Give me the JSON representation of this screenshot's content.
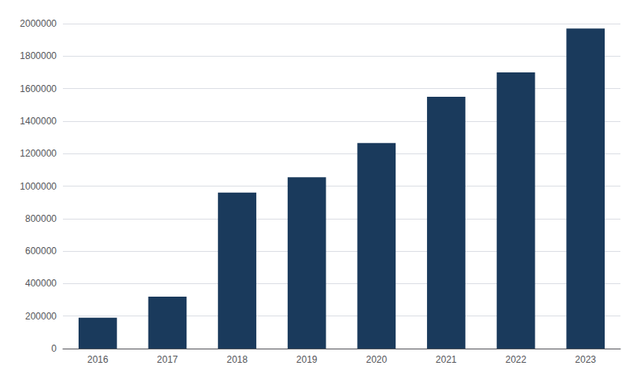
{
  "chart_data": {
    "type": "bar",
    "categories": [
      "2016",
      "2017",
      "2018",
      "2019",
      "2020",
      "2021",
      "2022",
      "2023"
    ],
    "values": [
      190000,
      320000,
      960000,
      1055000,
      1265000,
      1550000,
      1700000,
      1970000
    ],
    "color": "#1a3a5c",
    "ylim": [
      0,
      2000000
    ],
    "yticks": [
      0,
      200000,
      400000,
      600000,
      800000,
      1000000,
      1200000,
      1400000,
      1600000,
      1800000,
      2000000
    ],
    "grid": true
  }
}
